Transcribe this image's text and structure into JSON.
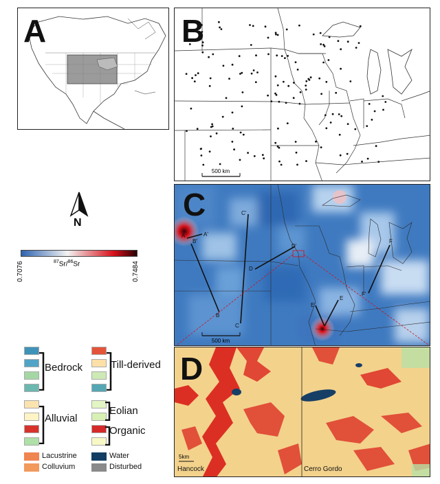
{
  "panels": {
    "a": {
      "label": "A"
    },
    "b": {
      "label": "B",
      "scale_label": "500 km"
    },
    "c": {
      "label": "C",
      "scale_label": "500 km",
      "transects": [
        "A",
        "A'",
        "B",
        "B'",
        "C",
        "C'",
        "D",
        "D'",
        "E",
        "E'",
        "F",
        "F'"
      ]
    },
    "d": {
      "label": "D",
      "scale_label": "5km",
      "left_name": "Hancock",
      "right_name": "Cerro Gordo"
    }
  },
  "north_arrow": {
    "label": "N"
  },
  "colorbar": {
    "min_label": "0.7076",
    "max_label": "0.7484",
    "title_sup1": "87",
    "title_mid": "Sr/",
    "title_sup2": "86",
    "title_end": "Sr",
    "colors": [
      "#2f64b0",
      "#f3f3f3",
      "#d8111a",
      "#2a0004"
    ]
  },
  "legend": {
    "bedrock": "Bedrock",
    "alluvial": "Alluvial",
    "till_derived": "Till-derived",
    "eolian": "Eolian",
    "organic": "Organic",
    "lacustrine": "Lacustrine",
    "colluvium": "Colluvium",
    "water": "Water",
    "disturbed": "Disturbed",
    "colors": {
      "bedrock": [
        "#3f93b9",
        "#52a4c7",
        "#a5d7a5",
        "#6cb8b0"
      ],
      "alluvial": [
        "#fbe3b0",
        "#fff4c6",
        "#d8322c",
        "#aee0a7"
      ],
      "till": [
        "#e4543a",
        "#fde0a8",
        "#cde9b6",
        "#55a7b4"
      ],
      "eolian": [
        "#e3f5c4",
        "#d8f0b4"
      ],
      "organic": [
        "#d42a2a",
        "#f7f8c6"
      ],
      "lacustrine": "#ef8551",
      "colluvium": "#f2995c",
      "water": "#123e63",
      "disturbed": "#8a8a8a"
    }
  }
}
